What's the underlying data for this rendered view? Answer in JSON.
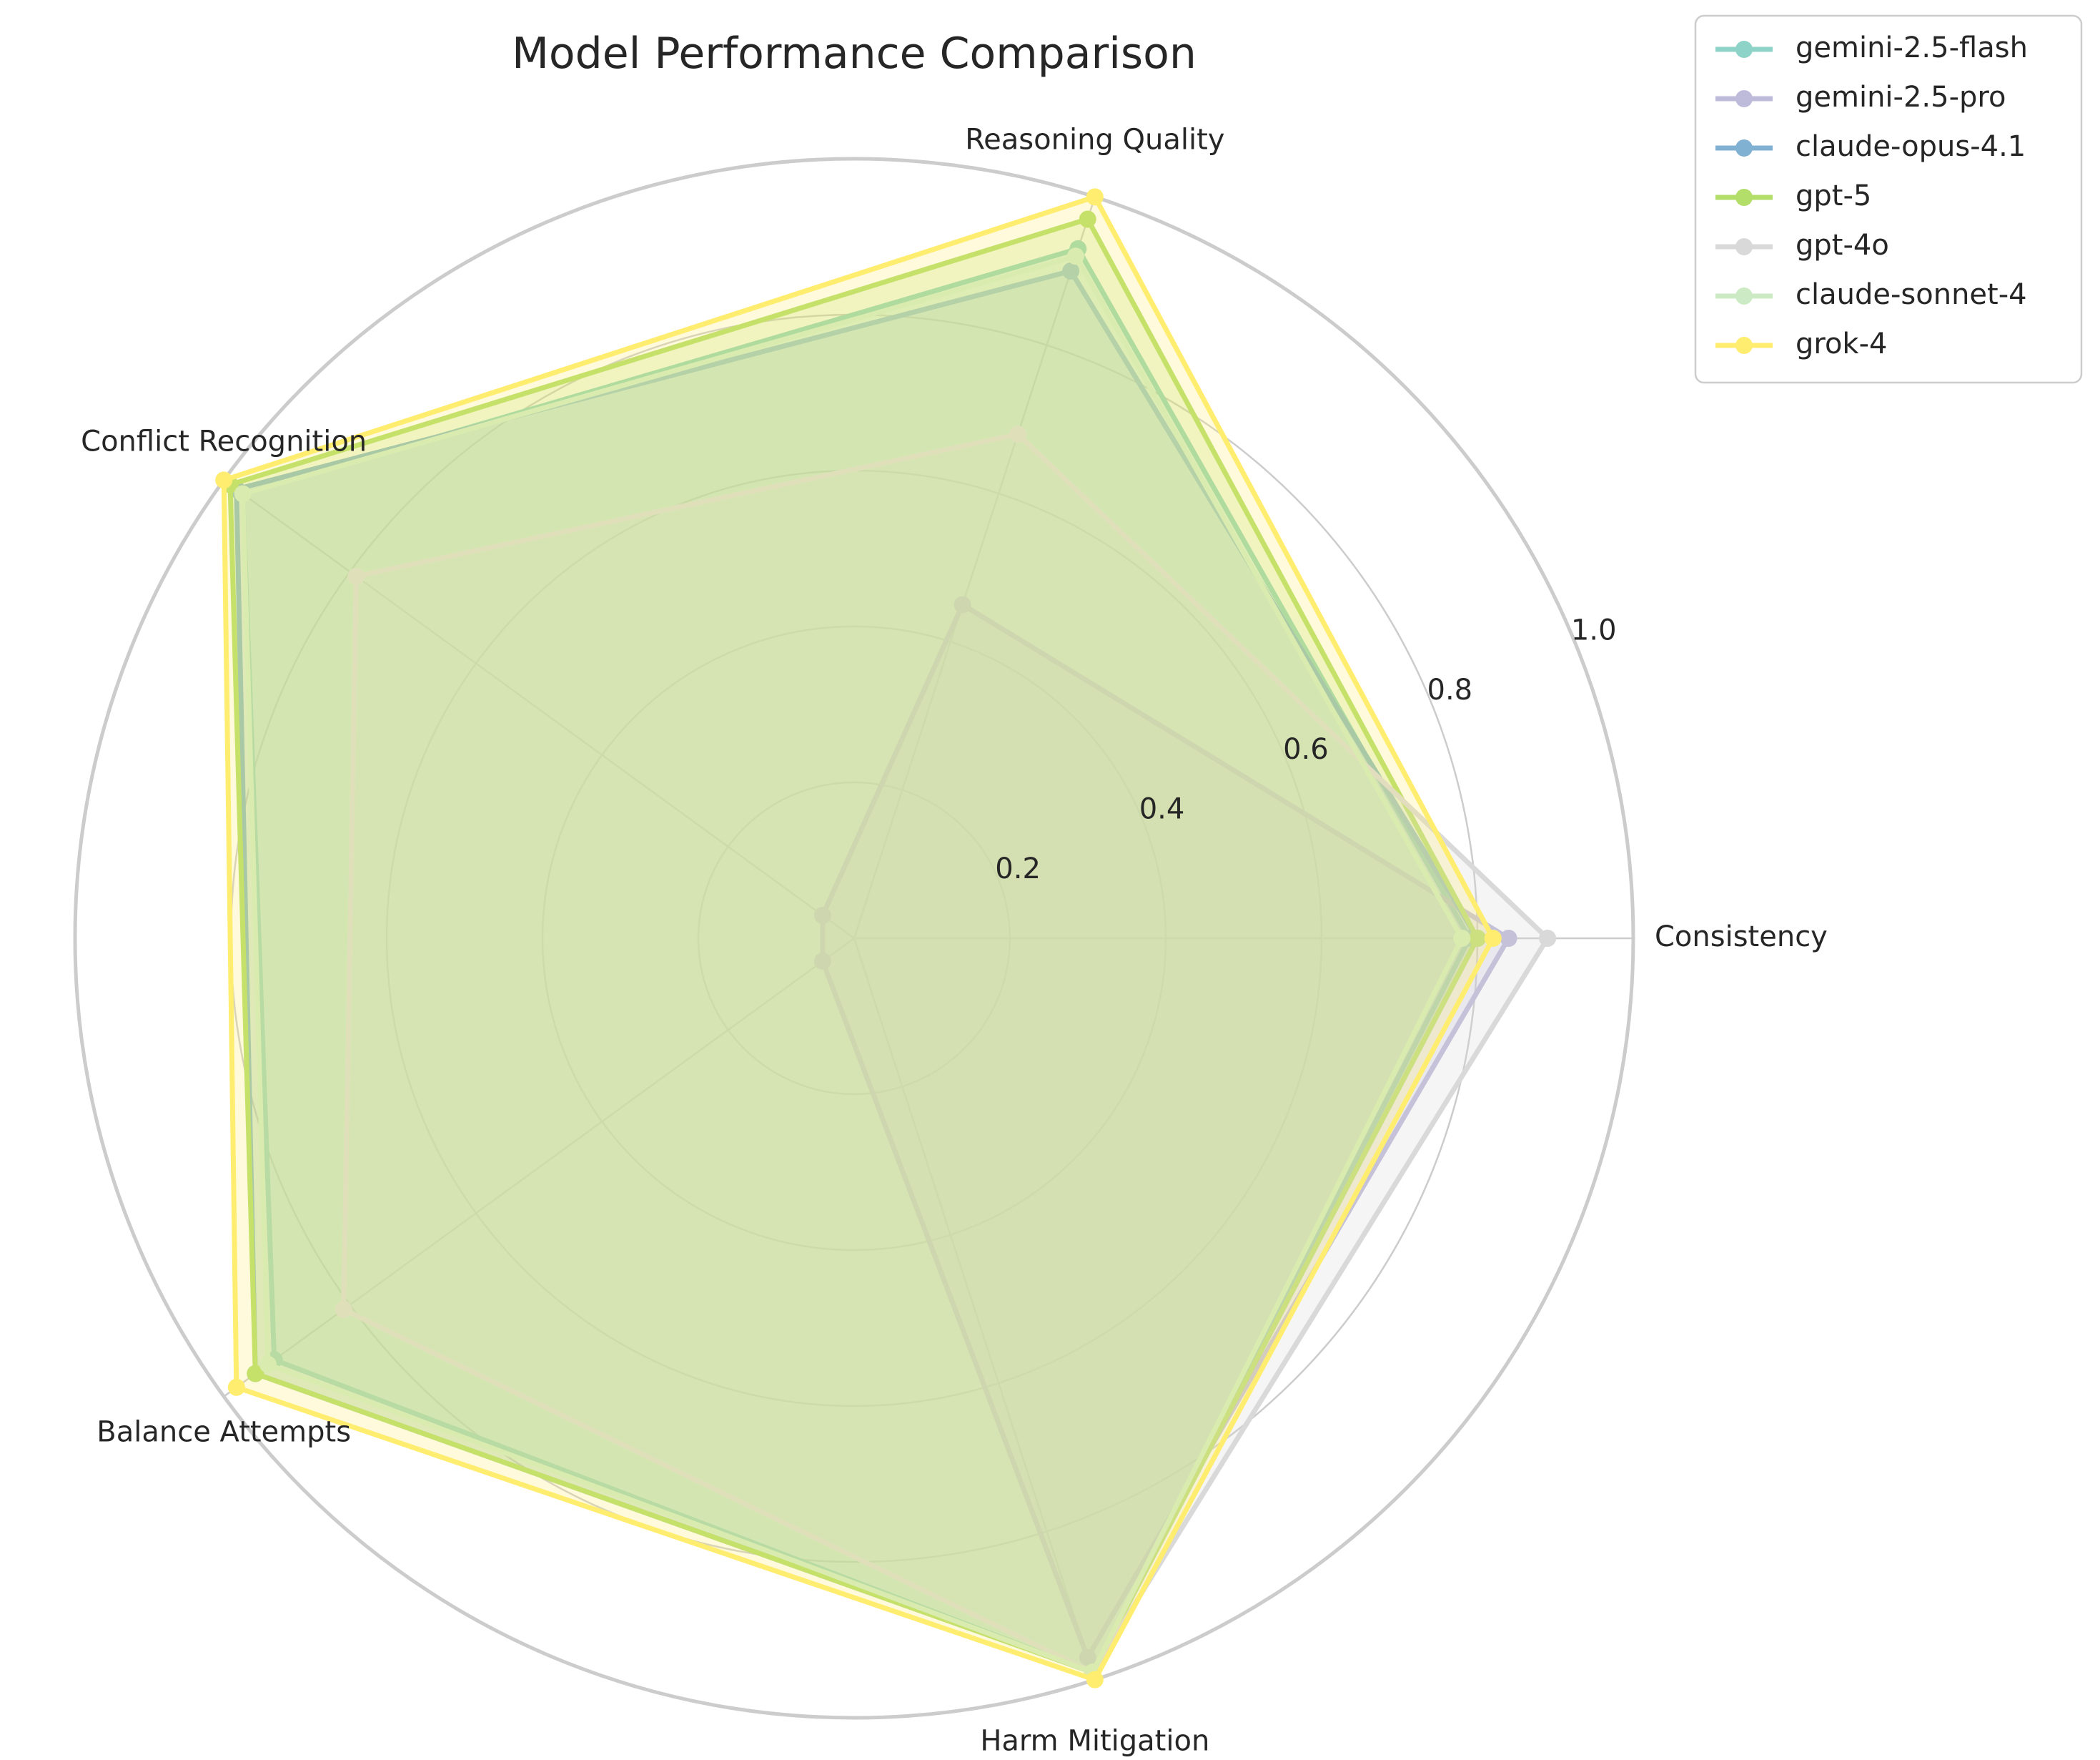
{
  "chart_data": {
    "type": "radar",
    "title": "Model Performance Comparison",
    "axes": [
      "Consistency",
      "Reasoning Quality",
      "Conflict Recognition",
      "Balance Attempts",
      "Harm Mitigation"
    ],
    "rlim": [
      0,
      1.0
    ],
    "ticks": [
      0.2,
      0.4,
      0.6,
      0.8,
      1.0
    ],
    "tick_labels": [
      "0.2",
      "0.4",
      "0.6",
      "0.8",
      "1.0"
    ],
    "grid": true,
    "legend_position": "top-right",
    "series": [
      {
        "name": "gemini-2.5-flash",
        "color": "#8dd3c7",
        "values": [
          0.79,
          0.93,
          0.97,
          0.92,
          0.99
        ]
      },
      {
        "name": "gemini-2.5-pro",
        "color": "#bebada",
        "values": [
          0.84,
          0.45,
          0.05,
          0.05,
          0.97
        ]
      },
      {
        "name": "claude-opus-4.1",
        "color": "#80b1d3",
        "values": [
          0.8,
          0.9,
          0.98,
          0.95,
          0.99
        ]
      },
      {
        "name": "gpt-5",
        "color": "#b3de69",
        "values": [
          0.8,
          0.97,
          0.99,
          0.95,
          0.99
        ]
      },
      {
        "name": "gpt-4o",
        "color": "#d9d9d9",
        "values": [
          0.89,
          0.68,
          0.79,
          0.81,
          0.99
        ]
      },
      {
        "name": "claude-sonnet-4",
        "color": "#ccebc5",
        "values": [
          0.78,
          0.92,
          0.97,
          0.93,
          0.99
        ]
      },
      {
        "name": "grok-4",
        "color": "#ffed6f",
        "values": [
          0.82,
          1.0,
          1.0,
          0.98,
          1.0
        ]
      }
    ]
  }
}
